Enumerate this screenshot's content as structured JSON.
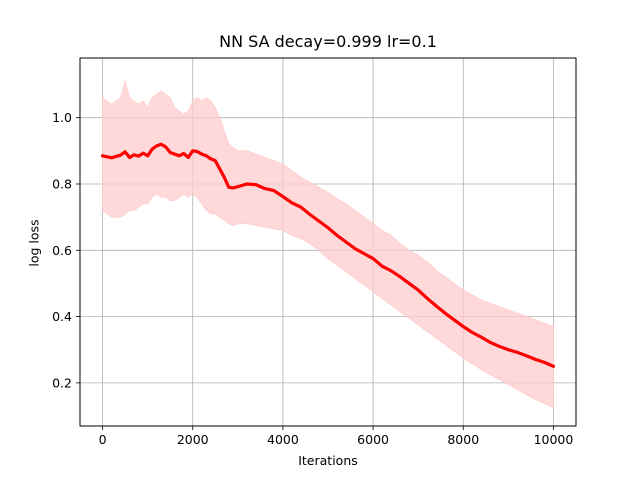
{
  "chart_data": {
    "type": "line",
    "title": "NN SA decay=0.999 lr=0.1",
    "xlabel": "Iterations",
    "ylabel": "log loss",
    "xlim": [
      -500,
      10500
    ],
    "ylim": [
      0.07,
      1.18
    ],
    "xticks": [
      0,
      2000,
      4000,
      6000,
      8000,
      10000
    ],
    "xtick_labels": [
      "0",
      "2000",
      "4000",
      "6000",
      "8000",
      "10000"
    ],
    "yticks": [
      0.2,
      0.4,
      0.6,
      0.8,
      1.0
    ],
    "ytick_labels": [
      "0.2",
      "0.4",
      "0.6",
      "0.8",
      "1.0"
    ],
    "grid": true,
    "series": [
      {
        "color": "#ff0000",
        "band_color": "#ffcccc",
        "x": [
          0,
          100,
          200,
          300,
          400,
          500,
          600,
          700,
          800,
          900,
          1000,
          1100,
          1200,
          1300,
          1400,
          1500,
          1600,
          1700,
          1800,
          1900,
          2000,
          2100,
          2200,
          2300,
          2400,
          2500,
          2600,
          2700,
          2800,
          2900,
          3000,
          3200,
          3400,
          3600,
          3800,
          4000,
          4200,
          4400,
          4600,
          4800,
          5000,
          5200,
          5400,
          5600,
          5800,
          6000,
          6200,
          6400,
          6600,
          6800,
          7000,
          7200,
          7400,
          7600,
          7800,
          8000,
          8200,
          8400,
          8600,
          8800,
          9000,
          9200,
          9400,
          9600,
          9800,
          10000
        ],
        "mean": [
          0.885,
          0.882,
          0.879,
          0.883,
          0.887,
          0.897,
          0.88,
          0.888,
          0.884,
          0.893,
          0.885,
          0.905,
          0.915,
          0.92,
          0.912,
          0.895,
          0.89,
          0.885,
          0.892,
          0.88,
          0.9,
          0.898,
          0.89,
          0.885,
          0.876,
          0.87,
          0.845,
          0.82,
          0.79,
          0.788,
          0.792,
          0.8,
          0.798,
          0.786,
          0.78,
          0.762,
          0.743,
          0.73,
          0.708,
          0.688,
          0.668,
          0.645,
          0.625,
          0.605,
          0.59,
          0.575,
          0.552,
          0.538,
          0.52,
          0.5,
          0.48,
          0.455,
          0.432,
          0.41,
          0.39,
          0.37,
          0.352,
          0.338,
          0.322,
          0.31,
          0.3,
          0.292,
          0.282,
          0.271,
          0.262,
          0.25
        ],
        "upper": [
          1.06,
          1.05,
          1.04,
          1.05,
          1.06,
          1.11,
          1.06,
          1.05,
          1.04,
          1.05,
          1.03,
          1.06,
          1.07,
          1.08,
          1.07,
          1.06,
          1.03,
          1.02,
          1.01,
          1.02,
          1.05,
          1.06,
          1.05,
          1.06,
          1.05,
          1.03,
          1.0,
          0.96,
          0.92,
          0.91,
          0.9,
          0.9,
          0.89,
          0.88,
          0.87,
          0.86,
          0.84,
          0.82,
          0.805,
          0.79,
          0.775,
          0.755,
          0.74,
          0.72,
          0.7,
          0.68,
          0.66,
          0.645,
          0.62,
          0.6,
          0.585,
          0.565,
          0.54,
          0.52,
          0.5,
          0.48,
          0.465,
          0.45,
          0.44,
          0.43,
          0.42,
          0.41,
          0.4,
          0.39,
          0.38,
          0.37
        ],
        "lower": [
          0.72,
          0.71,
          0.7,
          0.7,
          0.7,
          0.71,
          0.72,
          0.72,
          0.73,
          0.74,
          0.74,
          0.76,
          0.77,
          0.76,
          0.76,
          0.75,
          0.75,
          0.76,
          0.77,
          0.76,
          0.77,
          0.76,
          0.74,
          0.72,
          0.71,
          0.71,
          0.7,
          0.69,
          0.68,
          0.675,
          0.68,
          0.68,
          0.675,
          0.67,
          0.665,
          0.66,
          0.645,
          0.635,
          0.62,
          0.6,
          0.575,
          0.555,
          0.535,
          0.515,
          0.495,
          0.475,
          0.455,
          0.435,
          0.415,
          0.395,
          0.375,
          0.355,
          0.335,
          0.315,
          0.295,
          0.275,
          0.258,
          0.24,
          0.225,
          0.21,
          0.195,
          0.18,
          0.165,
          0.15,
          0.138,
          0.125
        ]
      }
    ]
  }
}
